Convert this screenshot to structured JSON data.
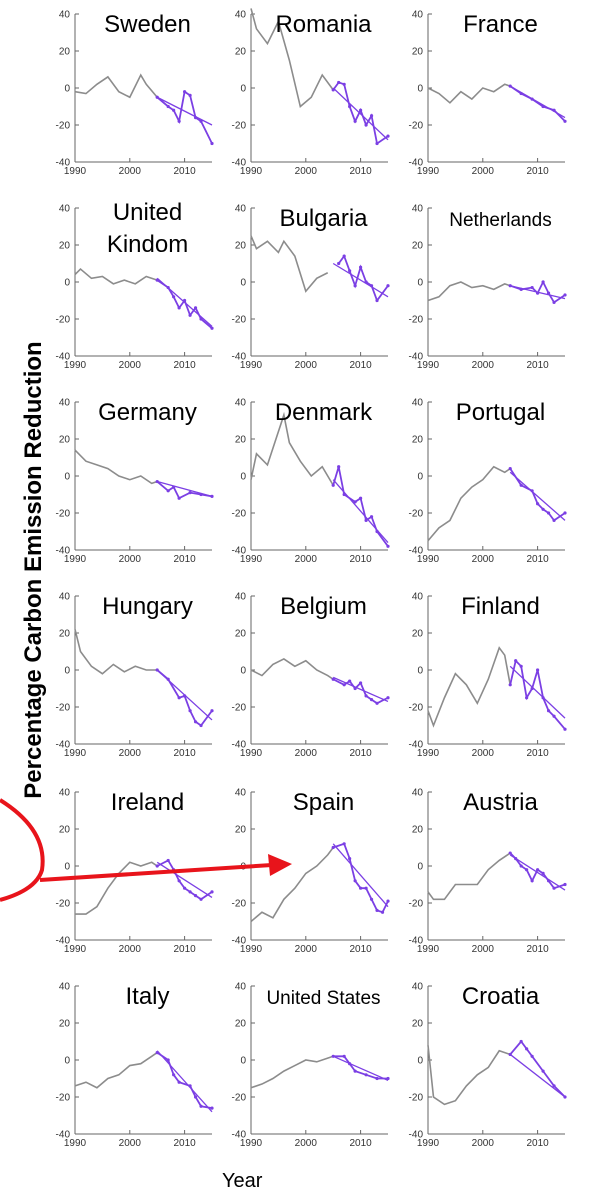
{
  "ylabel": "Percentage Carbon Emission Reduction",
  "xlabel": "Year",
  "colors": {
    "historic": "#8c8c8c",
    "recent": "#7b3fe4",
    "trend": "#7b3fe4",
    "annotation": "#e8141b",
    "axis": "#666666"
  },
  "chart_data": [
    {
      "type": "line",
      "title": "Sweden",
      "xlim": [
        1990,
        2015
      ],
      "ylim": [
        -40,
        40
      ],
      "x": [
        1990,
        1992,
        1994,
        1996,
        1998,
        2000,
        2002,
        2003,
        2005,
        2007,
        2008,
        2009,
        2010,
        2011,
        2012,
        2013,
        2015
      ],
      "y": [
        -2,
        -3,
        2,
        6,
        -2,
        -5,
        7,
        2,
        -5,
        -10,
        -12,
        -18,
        -2,
        -4,
        -16,
        -18,
        -30
      ],
      "recent_from": 2005,
      "trend": [
        [
          2005,
          -5
        ],
        [
          2015,
          -20
        ]
      ]
    },
    {
      "type": "line",
      "title": "Romania",
      "xlim": [
        1990,
        2015
      ],
      "ylim": [
        -40,
        40
      ],
      "x": [
        1990,
        1991,
        1993,
        1995,
        1997,
        1999,
        2001,
        2003,
        2005,
        2006,
        2007,
        2008,
        2009,
        2010,
        2011,
        2012,
        2013,
        2015
      ],
      "y": [
        43,
        32,
        24,
        36,
        15,
        -10,
        -5,
        7,
        -1,
        3,
        2,
        -10,
        -18,
        -12,
        -20,
        -15,
        -30,
        -26
      ],
      "recent_from": 2005,
      "trend": [
        [
          2005,
          0
        ],
        [
          2015,
          -28
        ]
      ]
    },
    {
      "type": "line",
      "title": "France",
      "xlim": [
        1990,
        2015
      ],
      "ylim": [
        -40,
        40
      ],
      "x": [
        1990,
        1992,
        1994,
        1996,
        1998,
        2000,
        2002,
        2004,
        2005,
        2007,
        2009,
        2011,
        2013,
        2015
      ],
      "y": [
        0,
        -3,
        -8,
        -2,
        -6,
        0,
        -2,
        2,
        1,
        -3,
        -6,
        -10,
        -12,
        -18
      ],
      "recent_from": 2005,
      "trend": [
        [
          2005,
          1
        ],
        [
          2015,
          -16
        ]
      ]
    },
    {
      "type": "line",
      "title": "United Kindom",
      "xlim": [
        1990,
        2015
      ],
      "ylim": [
        -40,
        40
      ],
      "x": [
        1990,
        1991,
        1993,
        1995,
        1997,
        1999,
        2001,
        2003,
        2005,
        2007,
        2008,
        2009,
        2010,
        2011,
        2012,
        2013,
        2015
      ],
      "y": [
        4,
        7,
        2,
        3,
        -1,
        1,
        -1,
        3,
        1,
        -3,
        -8,
        -14,
        -10,
        -18,
        -14,
        -20,
        -25
      ],
      "recent_from": 2005,
      "trend": [
        [
          2005,
          2
        ],
        [
          2015,
          -24
        ]
      ]
    },
    {
      "type": "line",
      "title": "Bulgaria",
      "xlim": [
        1990,
        2015
      ],
      "ylim": [
        -40,
        40
      ],
      "x": [
        1990,
        1991,
        1993,
        1995,
        1996,
        1998,
        2000,
        2002,
        2004,
        2006,
        2007,
        2008,
        2009,
        2010,
        2011,
        2012,
        2013,
        2015
      ],
      "y": [
        25,
        18,
        22,
        16,
        22,
        14,
        -5,
        2,
        5,
        10,
        14,
        6,
        -2,
        8,
        0,
        -2,
        -10,
        -2
      ],
      "recent_from": 2005,
      "trend": [
        [
          2005,
          10
        ],
        [
          2015,
          -8
        ]
      ]
    },
    {
      "type": "line",
      "title": "Netherlands",
      "xlim": [
        1990,
        2015
      ],
      "ylim": [
        -40,
        40
      ],
      "x": [
        1990,
        1992,
        1994,
        1996,
        1998,
        2000,
        2002,
        2004,
        2005,
        2007,
        2009,
        2010,
        2011,
        2012,
        2013,
        2015
      ],
      "y": [
        -10,
        -8,
        -2,
        0,
        -3,
        -2,
        -4,
        -1,
        -2,
        -4,
        -3,
        -6,
        0,
        -6,
        -11,
        -7
      ],
      "recent_from": 2005,
      "trend": [
        [
          2005,
          -2
        ],
        [
          2015,
          -9
        ]
      ]
    },
    {
      "type": "line",
      "title": "Germany",
      "xlim": [
        1990,
        2015
      ],
      "ylim": [
        -40,
        40
      ],
      "x": [
        1990,
        1992,
        1994,
        1996,
        1998,
        2000,
        2002,
        2004,
        2005,
        2007,
        2008,
        2009,
        2011,
        2013,
        2015
      ],
      "y": [
        14,
        8,
        6,
        4,
        0,
        -2,
        0,
        -4,
        -3,
        -8,
        -6,
        -12,
        -9,
        -10,
        -11
      ],
      "recent_from": 2005,
      "trend": [
        [
          2005,
          -3
        ],
        [
          2015,
          -11
        ]
      ]
    },
    {
      "type": "line",
      "title": "Denmark",
      "xlim": [
        1990,
        2015
      ],
      "ylim": [
        -40,
        40
      ],
      "x": [
        1990,
        1991,
        1993,
        1994,
        1996,
        1997,
        1999,
        2001,
        2003,
        2005,
        2006,
        2007,
        2009,
        2010,
        2011,
        2012,
        2013,
        2015
      ],
      "y": [
        -2,
        12,
        6,
        15,
        33,
        18,
        8,
        0,
        5,
        -5,
        5,
        -10,
        -14,
        -12,
        -24,
        -22,
        -30,
        -38
      ],
      "recent_from": 2005,
      "trend": [
        [
          2005,
          -2
        ],
        [
          2015,
          -36
        ]
      ]
    },
    {
      "type": "line",
      "title": "Portugal",
      "xlim": [
        1990,
        2015
      ],
      "ylim": [
        -40,
        40
      ],
      "x": [
        1990,
        1992,
        1994,
        1996,
        1998,
        2000,
        2002,
        2004,
        2005,
        2007,
        2009,
        2010,
        2011,
        2012,
        2013,
        2015
      ],
      "y": [
        -35,
        -28,
        -24,
        -12,
        -6,
        -2,
        5,
        2,
        4,
        -5,
        -8,
        -15,
        -18,
        -20,
        -24,
        -20
      ],
      "recent_from": 2005,
      "trend": [
        [
          2005,
          2
        ],
        [
          2015,
          -24
        ]
      ]
    },
    {
      "type": "line",
      "title": "Hungary",
      "xlim": [
        1990,
        2015
      ],
      "ylim": [
        -40,
        40
      ],
      "x": [
        1990,
        1991,
        1993,
        1995,
        1997,
        1999,
        2001,
        2003,
        2005,
        2007,
        2009,
        2010,
        2011,
        2012,
        2013,
        2015
      ],
      "y": [
        22,
        10,
        2,
        -2,
        3,
        -1,
        2,
        0,
        0,
        -5,
        -15,
        -14,
        -22,
        -28,
        -30,
        -22
      ],
      "recent_from": 2005,
      "trend": [
        [
          2005,
          0
        ],
        [
          2015,
          -27
        ]
      ]
    },
    {
      "type": "line",
      "title": "Belgium",
      "xlim": [
        1990,
        2015
      ],
      "ylim": [
        -40,
        40
      ],
      "x": [
        1990,
        1992,
        1994,
        1996,
        1998,
        2000,
        2002,
        2004,
        2005,
        2007,
        2008,
        2009,
        2010,
        2011,
        2012,
        2013,
        2015
      ],
      "y": [
        0,
        -3,
        3,
        6,
        2,
        5,
        0,
        -3,
        -5,
        -8,
        -6,
        -10,
        -7,
        -14,
        -16,
        -18,
        -15
      ],
      "recent_from": 2005,
      "trend": [
        [
          2005,
          -4
        ],
        [
          2015,
          -17
        ]
      ]
    },
    {
      "type": "line",
      "title": "Finland",
      "xlim": [
        1990,
        2015
      ],
      "ylim": [
        -40,
        40
      ],
      "x": [
        1990,
        1991,
        1993,
        1995,
        1997,
        1999,
        2001,
        2003,
        2004,
        2005,
        2006,
        2007,
        2008,
        2009,
        2010,
        2011,
        2012,
        2013,
        2015
      ],
      "y": [
        -22,
        -30,
        -15,
        -2,
        -8,
        -18,
        -5,
        12,
        8,
        -8,
        5,
        2,
        -15,
        -10,
        0,
        -15,
        -22,
        -25,
        -32
      ],
      "recent_from": 2005,
      "trend": [
        [
          2005,
          2
        ],
        [
          2015,
          -26
        ]
      ]
    },
    {
      "type": "line",
      "title": "Ireland",
      "xlim": [
        1990,
        2015
      ],
      "ylim": [
        -40,
        40
      ],
      "x": [
        1990,
        1992,
        1994,
        1996,
        1998,
        2000,
        2002,
        2004,
        2005,
        2007,
        2008,
        2009,
        2010,
        2011,
        2012,
        2013,
        2015
      ],
      "y": [
        -26,
        -26,
        -22,
        -12,
        -4,
        2,
        0,
        2,
        0,
        3,
        -2,
        -8,
        -12,
        -14,
        -16,
        -18,
        -14
      ],
      "recent_from": 2005,
      "trend": [
        [
          2005,
          2
        ],
        [
          2015,
          -17
        ]
      ]
    },
    {
      "type": "line",
      "title": "Spain",
      "xlim": [
        1990,
        2015
      ],
      "ylim": [
        -40,
        40
      ],
      "x": [
        1990,
        1992,
        1994,
        1996,
        1998,
        2000,
        2002,
        2004,
        2005,
        2007,
        2008,
        2009,
        2010,
        2011,
        2012,
        2013,
        2014,
        2015
      ],
      "y": [
        -30,
        -25,
        -28,
        -18,
        -12,
        -4,
        0,
        6,
        10,
        12,
        4,
        -8,
        -12,
        -12,
        -18,
        -24,
        -25,
        -19
      ],
      "recent_from": 2005,
      "trend": [
        [
          2005,
          12
        ],
        [
          2015,
          -22
        ]
      ]
    },
    {
      "type": "line",
      "title": "Austria",
      "xlim": [
        1990,
        2015
      ],
      "ylim": [
        -40,
        40
      ],
      "x": [
        1990,
        1991,
        1993,
        1995,
        1997,
        1999,
        2001,
        2003,
        2005,
        2006,
        2007,
        2008,
        2009,
        2010,
        2011,
        2012,
        2013,
        2015
      ],
      "y": [
        -14,
        -18,
        -18,
        -10,
        -10,
        -10,
        -2,
        3,
        7,
        4,
        0,
        -2,
        -8,
        -2,
        -4,
        -8,
        -12,
        -10
      ],
      "recent_from": 2005,
      "trend": [
        [
          2005,
          6
        ],
        [
          2015,
          -13
        ]
      ]
    },
    {
      "type": "line",
      "title": "Italy",
      "xlim": [
        1990,
        2015
      ],
      "ylim": [
        -40,
        40
      ],
      "x": [
        1990,
        1992,
        1994,
        1996,
        1998,
        2000,
        2002,
        2004,
        2005,
        2007,
        2008,
        2009,
        2011,
        2012,
        2013,
        2015
      ],
      "y": [
        -14,
        -12,
        -15,
        -10,
        -8,
        -3,
        -2,
        2,
        4,
        0,
        -8,
        -12,
        -14,
        -20,
        -25,
        -26
      ],
      "recent_from": 2005,
      "trend": [
        [
          2005,
          5
        ],
        [
          2015,
          -28
        ]
      ]
    },
    {
      "type": "line",
      "title": "United States",
      "xlim": [
        1990,
        2015
      ],
      "ylim": [
        -40,
        40
      ],
      "x": [
        1990,
        1992,
        1994,
        1996,
        1998,
        2000,
        2002,
        2004,
        2005,
        2007,
        2008,
        2009,
        2011,
        2013,
        2015
      ],
      "y": [
        -15,
        -13,
        -10,
        -6,
        -3,
        0,
        -1,
        1,
        2,
        2,
        -2,
        -6,
        -8,
        -10,
        -10
      ],
      "recent_from": 2005,
      "trend": [
        [
          2005,
          2
        ],
        [
          2015,
          -11
        ]
      ]
    },
    {
      "type": "line",
      "title": "Croatia",
      "xlim": [
        1990,
        2015
      ],
      "ylim": [
        -40,
        40
      ],
      "x": [
        1990,
        1991,
        1993,
        1995,
        1997,
        1999,
        2001,
        2003,
        2005,
        2007,
        2008,
        2009,
        2011,
        2013,
        2015
      ],
      "y": [
        8,
        -20,
        -24,
        -22,
        -14,
        -8,
        -4,
        5,
        3,
        10,
        6,
        2,
        -6,
        -14,
        -20
      ],
      "recent_from": 2005,
      "trend": [
        [
          2005,
          3
        ],
        [
          2015,
          -20
        ]
      ]
    }
  ]
}
